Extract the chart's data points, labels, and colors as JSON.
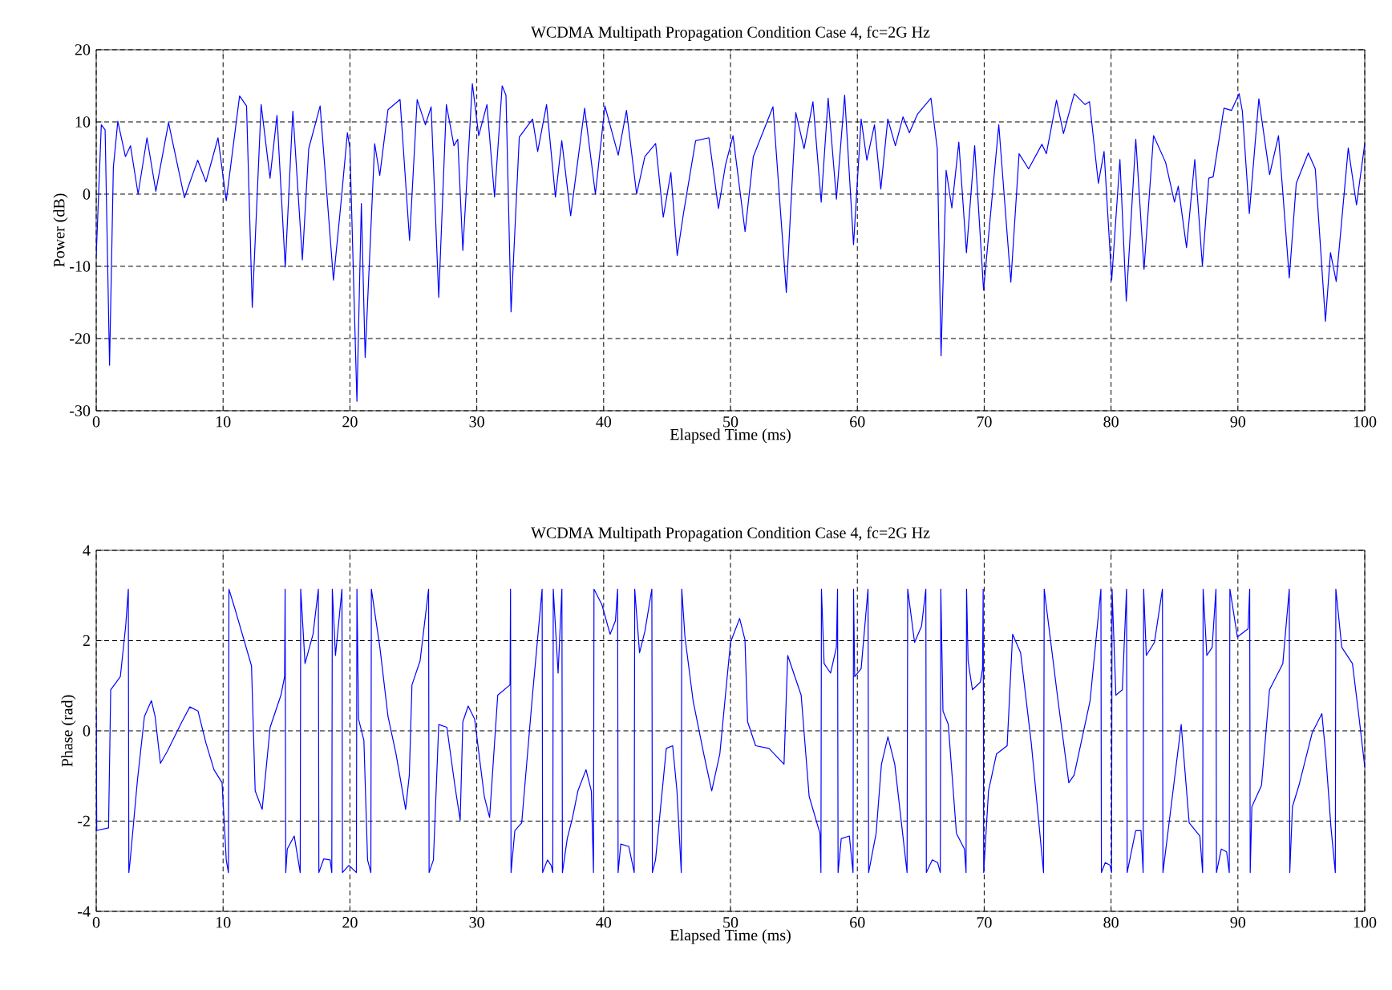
{
  "chart_data": [
    {
      "type": "line",
      "title": "WCDMA Multipath Propagation Condition Case 4, fc=2G Hz",
      "xlabel": "Elapsed Time (ms)",
      "ylabel": "Power (dB)",
      "xlim": [
        0,
        100
      ],
      "ylim": [
        -30,
        20
      ],
      "xticks": [
        0,
        10,
        20,
        30,
        40,
        50,
        60,
        70,
        80,
        90,
        100
      ],
      "yticks": [
        -30,
        -20,
        -10,
        0,
        10,
        20
      ],
      "grid": true,
      "color": "#0000ff",
      "x": [
        0,
        0.4,
        0.7,
        1.05,
        1.35,
        1.7,
        2.3,
        2.7,
        3.3,
        4.0,
        4.7,
        5.7,
        6.95,
        8.0,
        8.65,
        9.6,
        10.25,
        11.3,
        11.85,
        12.3,
        13.0,
        13.7,
        14.25,
        14.9,
        15.5,
        16.25,
        16.75,
        17.65,
        18.7,
        19.3,
        19.8,
        20.0,
        20.55,
        20.9,
        21.2,
        21.95,
        22.35,
        23.0,
        23.95,
        24.7,
        25.3,
        25.95,
        26.4,
        27.0,
        27.6,
        28.2,
        28.5,
        28.9,
        29.65,
        30.15,
        30.8,
        31.4,
        32.0,
        32.3,
        32.7,
        33.35,
        34.4,
        34.8,
        35.5,
        36.2,
        36.7,
        37.4,
        38.5,
        39.35,
        40.1,
        41.15,
        41.8,
        42.6,
        43.25,
        44.1,
        44.7,
        45.3,
        45.8,
        46.3,
        47.25,
        48.3,
        49.05,
        49.6,
        50.2,
        51.15,
        51.8,
        53.35,
        54.4,
        55.15,
        55.8,
        56.5,
        57.15,
        57.7,
        58.35,
        59.0,
        59.7,
        60.3,
        60.75,
        61.35,
        61.85,
        62.4,
        63.0,
        63.6,
        64.1,
        64.75,
        65.8,
        66.3,
        66.6,
        67.0,
        67.45,
        68.0,
        68.6,
        69.25,
        69.95,
        71.15,
        72.1,
        72.75,
        73.5,
        74.55,
        74.9,
        75.7,
        76.25,
        77.1,
        77.95,
        78.3,
        79.0,
        79.45,
        80.05,
        80.7,
        81.2,
        81.95,
        82.6,
        83.35,
        84.3,
        85.0,
        85.3,
        85.95,
        86.6,
        87.2,
        87.7,
        88.05,
        88.9,
        89.5,
        90.1,
        90.35,
        90.9,
        91.65,
        92.5,
        93.2,
        94.05,
        94.6,
        95.55,
        96.1,
        96.9,
        97.3,
        97.75,
        98.7,
        99.35,
        100
      ],
      "values": [
        -8.5,
        9.6,
        8.9,
        -23.7,
        3.7,
        10.1,
        5.2,
        6.7,
        0,
        7.8,
        0.4,
        9.9,
        -0.5,
        4.7,
        1.7,
        7.8,
        -0.9,
        13.6,
        12.2,
        -15.7,
        12.4,
        2.2,
        10.9,
        -10.1,
        11.5,
        -9.1,
        6.3,
        12.2,
        -11.9,
        -1.1,
        8.5,
        6.3,
        -28.7,
        -1.3,
        -22.6,
        7.0,
        2.6,
        11.7,
        13.1,
        -6.4,
        13.1,
        9.6,
        12.1,
        -14.3,
        12.4,
        6.7,
        7.6,
        -7.8,
        15.3,
        8.1,
        12.4,
        -0.4,
        15.0,
        13.7,
        -16.3,
        7.9,
        10.4,
        5.9,
        12.4,
        -0.4,
        7.4,
        -3.0,
        11.9,
        0,
        12.2,
        5.4,
        11.6,
        0,
        5.2,
        7.0,
        -3.2,
        3.0,
        -8.5,
        -2.6,
        7.4,
        7.8,
        -2.0,
        4.0,
        8.1,
        -5.2,
        5.2,
        12.1,
        -13.6,
        11.3,
        6.3,
        12.8,
        -1.1,
        13.3,
        -0.7,
        13.7,
        -7.0,
        10.4,
        4.7,
        9.6,
        0.7,
        10.4,
        6.7,
        10.7,
        8.5,
        11.1,
        13.3,
        6.3,
        -22.4,
        3.3,
        -1.9,
        7.2,
        -8.1,
        6.7,
        -13.3,
        9.6,
        -12.2,
        5.6,
        3.5,
        6.9,
        5.6,
        13.0,
        8.4,
        13.9,
        12.4,
        12.8,
        1.5,
        5.9,
        -11.9,
        4.8,
        -14.8,
        7.6,
        -10.4,
        8.1,
        4.4,
        -1.1,
        1.1,
        -7.4,
        4.8,
        -9.9,
        2.2,
        2.4,
        11.9,
        11.6,
        13.9,
        11.5,
        -2.7,
        13.2,
        2.7,
        8.1,
        -11.6,
        1.5,
        5.7,
        3.5,
        -17.6,
        -8.1,
        -12.1,
        6.4,
        -1.5,
        7.0
      ]
    },
    {
      "type": "line",
      "title": "WCDMA Multipath Propagation Condition Case 4, fc=2G Hz",
      "xlabel": "Elapsed Time (ms)",
      "ylabel": "Phase (rad)",
      "xlim": [
        0,
        100
      ],
      "ylim": [
        -4,
        4
      ],
      "xticks": [
        0,
        10,
        20,
        30,
        40,
        50,
        60,
        70,
        80,
        90,
        100
      ],
      "yticks": [
        -4,
        -2,
        0,
        2,
        4
      ],
      "grid": true,
      "color": "#0000ff",
      "x": [
        0,
        0.04,
        0.97,
        1.14,
        1.9,
        2.32,
        2.53,
        2.57,
        2.66,
        3.25,
        3.8,
        4.35,
        4.64,
        5.06,
        5.61,
        6.75,
        7.38,
        8.02,
        8.65,
        9.28,
        9.92,
        10.25,
        10.42,
        10.46,
        10.97,
        12.24,
        12.53,
        13.08,
        13.71,
        14.56,
        14.85,
        14.89,
        14.94,
        15.06,
        15.61,
        16.08,
        16.12,
        16.46,
        17.09,
        17.51,
        17.55,
        17.93,
        18.44,
        18.57,
        18.61,
        18.86,
        19.37,
        19.41,
        19.92,
        20.51,
        20.55,
        20.68,
        21.1,
        21.39,
        21.65,
        21.69,
        22.36,
        23.0,
        23.63,
        24.39,
        24.68,
        24.89,
        25.53,
        26.2,
        26.24,
        26.58,
        27.0,
        27.64,
        28.27,
        28.69,
        28.9,
        29.32,
        29.83,
        30.59,
        31.01,
        31.65,
        32.62,
        32.66,
        32.7,
        33.0,
        33.54,
        34.39,
        35.15,
        35.19,
        35.57,
        35.86,
        35.99,
        36.03,
        36.41,
        36.71,
        36.75,
        37.13,
        37.55,
        37.97,
        38.61,
        39.03,
        39.2,
        39.24,
        39.87,
        40.51,
        40.93,
        41.1,
        41.14,
        41.35,
        41.98,
        42.41,
        42.45,
        42.83,
        43.25,
        43.8,
        43.84,
        44.09,
        44.94,
        45.44,
        45.78,
        46.12,
        46.16,
        46.41,
        47.05,
        47.89,
        48.52,
        49.16,
        50.0,
        50.72,
        51.14,
        51.35,
        51.98,
        53.04,
        54.22,
        54.51,
        55.57,
        56.2,
        57.05,
        57.13,
        57.17,
        57.38,
        57.89,
        58.35,
        58.44,
        58.48,
        58.73,
        59.37,
        59.66,
        59.7,
        59.79,
        60.3,
        60.84,
        60.89,
        61.48,
        61.9,
        62.41,
        62.95,
        63.92,
        63.97,
        64.51,
        65.06,
        65.4,
        65.44,
        65.91,
        66.33,
        66.54,
        66.58,
        66.75,
        67.17,
        67.81,
        68.44,
        68.57,
        68.61,
        68.73,
        69.07,
        69.7,
        69.87,
        69.92,
        69.96,
        70.34,
        70.97,
        71.81,
        72.24,
        72.87,
        73.71,
        74.68,
        74.73,
        75.82,
        76.67,
        77.09,
        78.35,
        79.2,
        79.24,
        79.54,
        79.92,
        80.04,
        80.08,
        80.38,
        80.89,
        81.22,
        81.27,
        81.94,
        82.36,
        82.53,
        82.57,
        82.78,
        83.42,
        84.05,
        84.09,
        84.68,
        85.53,
        86.16,
        87.0,
        87.22,
        87.26,
        87.55,
        87.97,
        88.27,
        88.31,
        88.69,
        89.11,
        89.32,
        89.37,
        89.96,
        90.8,
        90.93,
        90.97,
        91.1,
        91.86,
        92.49,
        93.54,
        94.05,
        94.09,
        94.3,
        94.81,
        95.86,
        96.62,
        96.92,
        97.34,
        97.68,
        97.72,
        98.19,
        99.03,
        99.54,
        100
      ],
      "values": [
        0.49,
        -2.21,
        -2.15,
        0.91,
        1.2,
        2.32,
        3.14,
        -3.14,
        -2.92,
        -1.09,
        0.32,
        0.67,
        0.32,
        -0.72,
        -0.45,
        0.2,
        0.53,
        0.44,
        -0.27,
        -0.86,
        -1.15,
        -2.86,
        -3.14,
        3.14,
        2.67,
        1.44,
        -1.33,
        -1.74,
        0.08,
        0.79,
        1.2,
        3.14,
        -3.14,
        -2.62,
        -2.33,
        -3.14,
        3.14,
        1.49,
        2.14,
        3.14,
        -3.14,
        -2.84,
        -2.86,
        -3.14,
        3.14,
        1.67,
        3.14,
        -3.14,
        -2.98,
        -3.14,
        3.14,
        0.26,
        -0.21,
        -2.86,
        -3.14,
        3.14,
        1.85,
        0.32,
        -0.51,
        -1.74,
        -0.98,
        1.02,
        1.55,
        3.14,
        -3.14,
        -2.86,
        0.14,
        0.08,
        -1.21,
        -1.98,
        0.2,
        0.55,
        0.26,
        -1.45,
        -1.92,
        0.79,
        1.02,
        3.14,
        -3.14,
        -2.21,
        -2.04,
        0.79,
        3.14,
        -3.14,
        -2.86,
        -2.98,
        -3.14,
        3.14,
        1.28,
        3.14,
        -3.14,
        -2.39,
        -1.92,
        -1.33,
        -0.86,
        -1.33,
        -3.14,
        3.14,
        2.79,
        2.14,
        2.44,
        3.14,
        -3.14,
        -2.51,
        -2.56,
        -3.14,
        3.14,
        1.73,
        2.2,
        3.14,
        -3.14,
        -2.86,
        -0.39,
        -0.33,
        -1.33,
        -3.14,
        3.14,
        2.08,
        0.67,
        -0.51,
        -1.33,
        -0.51,
        1.96,
        2.49,
        2.02,
        0.2,
        -0.33,
        -0.39,
        -0.74,
        1.67,
        0.79,
        -1.45,
        -2.27,
        -3.14,
        3.14,
        1.49,
        1.28,
        1.85,
        3.14,
        -3.14,
        -2.39,
        -2.33,
        -3.14,
        3.14,
        1.2,
        1.38,
        3.14,
        -3.14,
        -2.27,
        -0.74,
        -0.13,
        -0.74,
        -3.14,
        3.14,
        1.96,
        2.32,
        3.14,
        -3.14,
        -2.86,
        -2.92,
        -3.14,
        3.14,
        0.44,
        0.14,
        -2.27,
        -2.62,
        -3.14,
        3.14,
        1.55,
        0.91,
        1.08,
        1.38,
        3.14,
        -3.14,
        -1.33,
        -0.51,
        -0.33,
        2.14,
        1.73,
        -0.27,
        -3.14,
        3.14,
        0.67,
        -1.15,
        -0.98,
        0.67,
        3.14,
        -3.14,
        -2.92,
        -2.98,
        -3.14,
        3.14,
        0.79,
        0.91,
        3.14,
        -3.14,
        -2.21,
        -2.21,
        -3.14,
        3.14,
        1.67,
        1.96,
        3.14,
        -3.14,
        -1.8,
        0.14,
        -2.04,
        -2.33,
        -3.14,
        3.14,
        1.67,
        1.85,
        3.14,
        -3.14,
        -2.62,
        -2.68,
        -3.14,
        3.14,
        2.08,
        2.26,
        3.14,
        -3.14,
        -1.68,
        -1.21,
        0.91,
        1.49,
        3.14,
        -3.14,
        -1.68,
        -1.21,
        -0.04,
        0.38,
        -0.51,
        -2.15,
        -3.14,
        3.14,
        1.85,
        1.49,
        0.32,
        -0.8
      ]
    }
  ]
}
